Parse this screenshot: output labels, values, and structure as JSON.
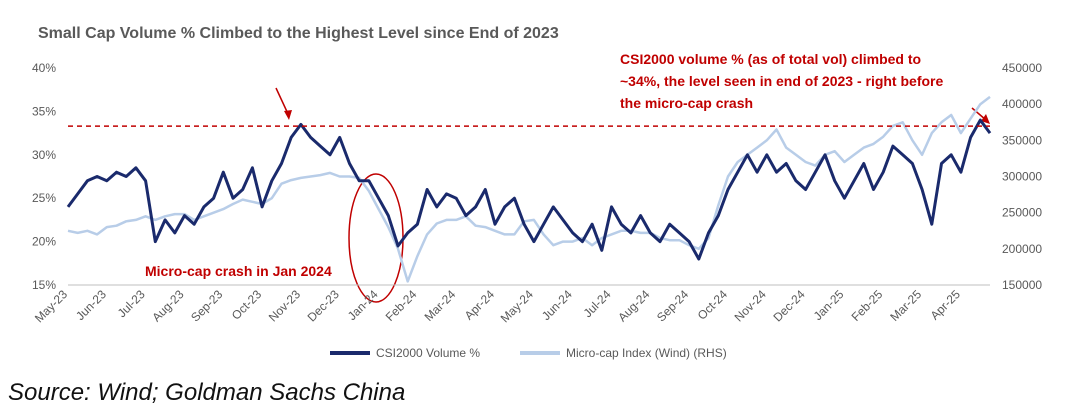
{
  "chart_data": {
    "type": "line",
    "title": "Small Cap Volume % Climbed to the Highest Level since End of 2023",
    "categories": [
      "May-23",
      null,
      null,
      null,
      "Jun-23",
      null,
      null,
      null,
      "Jul-23",
      null,
      null,
      null,
      "Aug-23",
      null,
      null,
      null,
      "Sep-23",
      null,
      null,
      null,
      "Oct-23",
      null,
      null,
      null,
      "Nov-23",
      null,
      null,
      null,
      "Dec-23",
      null,
      null,
      null,
      "Jan-24",
      null,
      null,
      null,
      "Feb-24",
      null,
      null,
      null,
      "Mar-24",
      null,
      null,
      null,
      "Apr-24",
      null,
      null,
      null,
      "May-24",
      null,
      null,
      null,
      "Jun-24",
      null,
      null,
      null,
      "Jul-24",
      null,
      null,
      null,
      "Aug-24",
      null,
      null,
      null,
      "Sep-24",
      null,
      null,
      null,
      "Oct-24",
      null,
      null,
      null,
      "Nov-24",
      null,
      null,
      null,
      "Dec-24",
      null,
      null,
      null,
      "Jan-25",
      null,
      null,
      null,
      "Feb-25",
      null,
      null,
      null,
      "Mar-25",
      null,
      null,
      null,
      "Apr-25",
      null,
      null,
      null
    ],
    "series": [
      {
        "name": "CSI2000 Volume %",
        "color": "#1a2a6c",
        "values": [
          24,
          25.5,
          27,
          27.5,
          27,
          28,
          27.5,
          28.5,
          27,
          20,
          22.5,
          21,
          23,
          22,
          24,
          25,
          28,
          25,
          26,
          28.5,
          24,
          27,
          29,
          32,
          33.5,
          32,
          31,
          30,
          32,
          29,
          27,
          27,
          25,
          23,
          19.5,
          21,
          22,
          26,
          24,
          25.5,
          25,
          23,
          24,
          26,
          22,
          24,
          25,
          22,
          20,
          22,
          24,
          22.5,
          21,
          20,
          22,
          19,
          24,
          22,
          21,
          23,
          21,
          20,
          22,
          21,
          20,
          18,
          21,
          23,
          26,
          28,
          30,
          28,
          30,
          28,
          29,
          27,
          26,
          28,
          30,
          27,
          25,
          27,
          29,
          26,
          28,
          31,
          30,
          29,
          26,
          22,
          29,
          30,
          28,
          32,
          34,
          32.5
        ]
      },
      {
        "name": "Micro-cap Index (Wind) (RHS)",
        "color": "#b8cde8",
        "axis": "y2",
        "values": [
          225000,
          222000,
          225000,
          220000,
          230000,
          232000,
          238000,
          240000,
          245000,
          240000,
          245000,
          248000,
          248000,
          240000,
          245000,
          250000,
          255000,
          262000,
          268000,
          265000,
          262000,
          270000,
          290000,
          295000,
          298000,
          300000,
          302000,
          305000,
          300000,
          300000,
          298000,
          280000,
          255000,
          230000,
          200000,
          155000,
          190000,
          220000,
          235000,
          240000,
          240000,
          245000,
          232000,
          230000,
          225000,
          220000,
          220000,
          238000,
          240000,
          220000,
          205000,
          210000,
          210000,
          215000,
          205000,
          215000,
          220000,
          225000,
          225000,
          222000,
          222000,
          215000,
          212000,
          212000,
          205000,
          200000,
          215000,
          260000,
          300000,
          320000,
          330000,
          340000,
          350000,
          365000,
          340000,
          330000,
          320000,
          315000,
          330000,
          335000,
          320000,
          330000,
          340000,
          345000,
          355000,
          370000,
          375000,
          350000,
          330000,
          360000,
          375000,
          385000,
          360000,
          380000,
          400000,
          410000
        ]
      }
    ],
    "ylim": [
      15,
      40
    ],
    "yticks": [
      {
        "value": 15,
        "label": "15%"
      },
      {
        "value": 20,
        "label": "20%"
      },
      {
        "value": 25,
        "label": "25%"
      },
      {
        "value": 30,
        "label": "30%"
      },
      {
        "value": 35,
        "label": "35%"
      },
      {
        "value": 40,
        "label": "40%"
      }
    ],
    "y2lim": [
      150000,
      450000
    ],
    "y2ticks": [
      150000,
      200000,
      250000,
      300000,
      350000,
      400000,
      450000
    ],
    "reference_line": 33.3,
    "annotations": [
      "CSI2000 volume % (as of total vol) climbed to",
      "~34%, the level seen in end of 2023 - right before",
      "the micro-cap crash",
      "Micro-cap crash in Jan 2024"
    ],
    "source": "Source: Wind; Goldman Sachs China"
  }
}
